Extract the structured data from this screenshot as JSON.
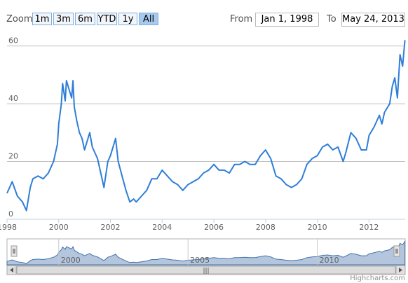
{
  "range_selector": {
    "zoom_label": "Zoom",
    "buttons": [
      {
        "label": "1m",
        "active": false
      },
      {
        "label": "3m",
        "active": false
      },
      {
        "label": "6m",
        "active": false
      },
      {
        "label": "YTD",
        "active": false
      },
      {
        "label": "1y",
        "active": false
      },
      {
        "label": "All",
        "active": true
      }
    ],
    "from_label": "From",
    "from_value": "Jan 1, 1998",
    "to_label": "To",
    "to_value": "May 24, 2013"
  },
  "credit": "Highcharts.com",
  "navigator": {
    "tick_labels": [
      "2000",
      "2005",
      "2010"
    ],
    "scrollbar_grip": "|||"
  },
  "colors": {
    "line": "#4572a7",
    "series_line": "#2f7ed8",
    "grid": "#c0c0c0",
    "navigator_fill": "#b4c6de",
    "button_active": "#a8c9ee"
  },
  "chart_data": {
    "type": "line",
    "xlim": [
      1998.0,
      2013.4
    ],
    "ylim": [
      0,
      65
    ],
    "yticks": [
      0,
      20,
      40,
      60
    ],
    "xticks": [
      "1998",
      "2000",
      "2002",
      "2004",
      "2006",
      "2008",
      "2010",
      "2012"
    ],
    "series": [
      {
        "x": [
          1998.0,
          1998.2,
          1998.4,
          1998.6,
          1998.75,
          1998.9,
          1999.0,
          1999.2,
          1999.4,
          1999.6,
          1999.8,
          1999.95,
          2000.0,
          2000.1,
          2000.15,
          2000.25,
          2000.3,
          2000.4,
          2000.5,
          2000.55,
          2000.6,
          2000.7,
          2000.8,
          2000.9,
          2001.0,
          2001.2,
          2001.3,
          2001.5,
          2001.6,
          2001.75,
          2001.9,
          2002.0,
          2002.2,
          2002.3,
          2002.45,
          2002.6,
          2002.75,
          2002.9,
          2003.0,
          2003.2,
          2003.4,
          2003.6,
          2003.8,
          2004.0,
          2004.2,
          2004.4,
          2004.6,
          2004.8,
          2005.0,
          2005.2,
          2005.4,
          2005.6,
          2005.8,
          2006.0,
          2006.2,
          2006.4,
          2006.6,
          2006.8,
          2007.0,
          2007.2,
          2007.4,
          2007.6,
          2007.8,
          2008.0,
          2008.2,
          2008.3,
          2008.4,
          2008.6,
          2008.8,
          2009.0,
          2009.2,
          2009.4,
          2009.6,
          2009.8,
          2010.0,
          2010.2,
          2010.4,
          2010.6,
          2010.8,
          2011.0,
          2011.1,
          2011.3,
          2011.5,
          2011.7,
          2011.9,
          2012.0,
          2012.2,
          2012.4,
          2012.5,
          2012.6,
          2012.8,
          2012.9,
          2013.0,
          2013.1,
          2013.2,
          2013.3,
          2013.39
        ],
        "y": [
          9,
          13,
          8,
          6,
          3,
          11,
          14,
          15,
          14,
          16,
          20,
          26,
          33,
          40,
          47,
          41,
          48,
          45,
          42,
          48,
          39,
          34,
          30,
          28,
          24,
          30,
          25,
          21,
          17,
          11,
          20,
          22,
          28,
          20,
          15,
          10,
          6,
          7,
          6,
          8,
          10,
          14,
          14,
          17,
          15,
          13,
          12,
          10,
          12,
          13,
          14,
          16,
          17,
          19,
          17,
          17,
          16,
          19,
          19,
          20,
          19,
          19,
          22,
          24,
          21,
          18,
          15,
          14,
          12,
          11,
          12,
          14,
          19,
          21,
          22,
          25,
          26,
          24,
          25,
          20,
          23,
          30,
          28,
          24,
          24,
          29,
          32,
          36,
          33,
          37,
          40,
          46,
          49,
          42,
          57,
          53,
          62
        ]
      }
    ]
  }
}
